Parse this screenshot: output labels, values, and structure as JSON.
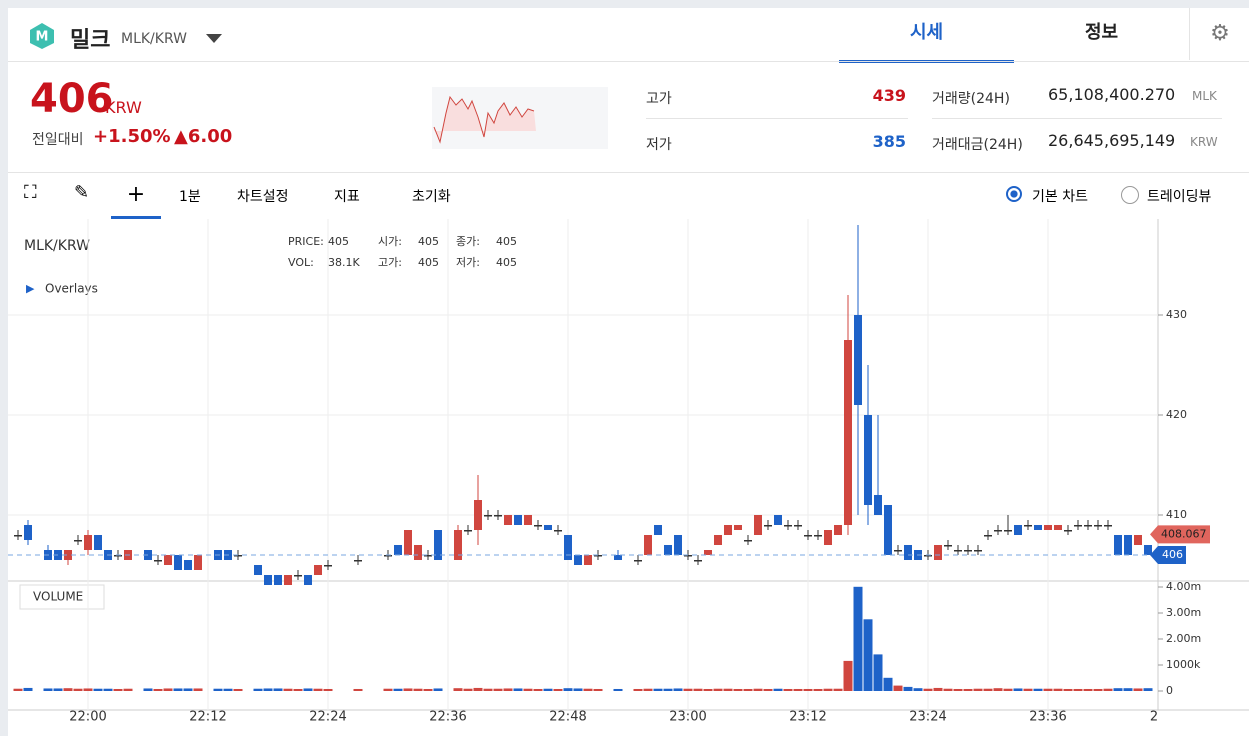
{
  "header": {
    "name": "밀크",
    "pair": "MLK/KRW",
    "tabs": [
      "시세",
      "정보"
    ]
  },
  "ticker": {
    "price": "406",
    "unit": "KRW",
    "change_label": "전일대비",
    "change_pct": "+1.50%",
    "change_abs": "▲6.00"
  },
  "stats": {
    "high_label": "고가",
    "high": "439",
    "low_label": "저가",
    "low": "385",
    "vol_label": "거래량(24H)",
    "vol": "65,108,400.270",
    "vol_unit": "MLK",
    "amt_label": "거래대금(24H)",
    "amt": "26,645,695,149",
    "amt_unit": "KRW"
  },
  "toolbar": {
    "interval": "1분",
    "settings": "차트설정",
    "indicators": "지표",
    "reset": "초기화",
    "basic": "기본 차트",
    "tradingview": "트레이딩뷰"
  },
  "legend": {
    "symbol": "MLK/KRW",
    "overlays": "Overlays",
    "items": [
      [
        "PRICE:",
        "405"
      ],
      [
        "시가:",
        "405"
      ],
      [
        "종가:",
        "405"
      ],
      [
        "VOL:",
        "38.1K"
      ],
      [
        "고가:",
        "405"
      ],
      [
        "저가:",
        "405"
      ]
    ],
    "volume_title": "VOLUME"
  },
  "chart_data": {
    "type": "candlestick",
    "x": [
      "21:53",
      "21:54",
      "21:56",
      "21:57",
      "21:58",
      "21:59",
      "22:00",
      "22:01",
      "22:02",
      "22:03",
      "22:04",
      "22:06",
      "22:07",
      "22:08",
      "22:09",
      "22:10",
      "22:11",
      "22:13",
      "22:14",
      "22:15",
      "22:17",
      "22:18",
      "22:19",
      "22:20",
      "22:21",
      "22:22",
      "22:23",
      "22:24",
      "22:27",
      "22:30",
      "22:31",
      "22:32",
      "22:33",
      "22:34",
      "22:35",
      "22:37",
      "22:38",
      "22:39",
      "22:40",
      "22:41",
      "22:42",
      "22:43",
      "22:44",
      "22:45",
      "22:46",
      "22:47",
      "22:48",
      "22:49",
      "22:50",
      "22:51",
      "22:53",
      "22:55",
      "22:56",
      "22:57",
      "22:58",
      "22:59",
      "23:00",
      "23:01",
      "23:02",
      "23:03",
      "23:04",
      "23:05",
      "23:06",
      "23:07",
      "23:08",
      "23:09",
      "23:10",
      "23:11",
      "23:12",
      "23:13",
      "23:14",
      "23:15",
      "23:16",
      "23:17",
      "23:18",
      "23:19",
      "23:20",
      "23:21",
      "23:22",
      "23:23",
      "23:24",
      "23:25",
      "23:26",
      "23:27",
      "23:28",
      "23:29",
      "23:30",
      "23:31",
      "23:32",
      "23:33",
      "23:34",
      "23:35",
      "23:36",
      "23:37",
      "23:38",
      "23:39",
      "23:40",
      "23:41",
      "23:42",
      "23:43",
      "23:44",
      "23:45",
      "23:46"
    ],
    "open": [
      408,
      409,
      406.5,
      406.5,
      405.5,
      407.5,
      406.5,
      408,
      406.5,
      406,
      405.5,
      406.5,
      405.5,
      405,
      406,
      405.5,
      404.5,
      406.5,
      406.5,
      406,
      405,
      404,
      404,
      403,
      404,
      404,
      404,
      405,
      405.5,
      406,
      407,
      406,
      405.5,
      406,
      408.5,
      405.5,
      408.5,
      408.5,
      410,
      410,
      409,
      410,
      409,
      409,
      409,
      408.5,
      408,
      406,
      405,
      406,
      406,
      405.5,
      406,
      409,
      407,
      408,
      406,
      405.5,
      406,
      407,
      408,
      408.5,
      407.5,
      408,
      409,
      410,
      409,
      409,
      408,
      408,
      407,
      408,
      409,
      430,
      420,
      412,
      411,
      406.5,
      407,
      406.5,
      406,
      405.5,
      407,
      406.5,
      406.5,
      406.5,
      408,
      408.5,
      408.5,
      409,
      409,
      409,
      408.5,
      408.5,
      408.5,
      409,
      409,
      409,
      409,
      408,
      408,
      407,
      407
    ],
    "high": [
      408.5,
      409.5,
      407,
      406.5,
      406.5,
      408,
      408.5,
      408,
      406.5,
      406.5,
      406.5,
      406.5,
      406,
      406,
      406,
      405.5,
      406,
      406.5,
      406.5,
      406.5,
      405,
      404,
      404,
      404,
      404.5,
      404,
      405,
      405.5,
      406,
      406.5,
      407,
      408.5,
      407,
      406.5,
      408.5,
      409,
      409,
      414,
      410.5,
      410.5,
      410,
      410,
      410,
      409.5,
      409,
      409,
      408,
      406,
      406,
      406.5,
      406.5,
      406,
      408,
      409,
      407,
      408,
      406.5,
      406,
      406.5,
      408,
      409,
      409,
      408,
      410,
      409.5,
      410,
      409.5,
      409.5,
      408.5,
      408.5,
      408.5,
      409,
      432,
      439,
      425,
      420,
      411,
      407,
      407,
      406.5,
      406.5,
      407,
      407.5,
      407,
      407,
      407,
      408.5,
      409,
      410,
      409,
      409.5,
      409,
      409,
      409,
      409,
      409.5,
      409.5,
      409.5,
      409.5,
      408,
      408,
      408,
      407
    ],
    "low": [
      407.5,
      407,
      405.5,
      405.5,
      405,
      407,
      406,
      406.5,
      405.5,
      405.5,
      405.5,
      405.5,
      405,
      405,
      404.5,
      404.5,
      404.5,
      405.5,
      405.5,
      405.5,
      404,
      403,
      403,
      403,
      403.5,
      403,
      404,
      404.5,
      405,
      405.5,
      406,
      406,
      405.5,
      405.5,
      405.5,
      405.5,
      408,
      407,
      409.5,
      409.5,
      409,
      409,
      409,
      408.5,
      408.5,
      408,
      405.5,
      405,
      405,
      405.5,
      405.5,
      405,
      406,
      408,
      406,
      406,
      405.5,
      405,
      406,
      407,
      408,
      408.5,
      407,
      408,
      408.5,
      409,
      408.5,
      408.5,
      407.5,
      407.5,
      407,
      408,
      408,
      410,
      409,
      410,
      406,
      406,
      405.5,
      405.5,
      405.5,
      405.5,
      406.5,
      406,
      406,
      406,
      407.5,
      408,
      408,
      408,
      408.5,
      408.5,
      408.5,
      408.5,
      408,
      408.5,
      408.5,
      408.5,
      408.5,
      406,
      406,
      407,
      406
    ],
    "close": [
      408,
      407.5,
      405.5,
      405.5,
      406.5,
      407.5,
      408,
      406.5,
      405.5,
      406,
      406.5,
      405.5,
      405.5,
      406,
      404.5,
      404.5,
      406,
      405.5,
      405.5,
      406,
      404,
      403,
      403,
      404,
      404,
      403,
      405,
      405,
      405.5,
      406,
      406,
      408.5,
      407,
      406,
      405.5,
      408.5,
      408.5,
      411.5,
      410,
      410,
      410,
      409,
      410,
      409,
      408.5,
      408.5,
      405.5,
      405,
      406,
      406,
      405.5,
      405.5,
      408,
      408,
      406,
      406,
      406,
      405.5,
      406.5,
      408,
      409,
      409,
      407.5,
      410,
      409,
      409,
      409,
      409,
      408,
      408,
      408.5,
      409,
      427.5,
      421,
      411,
      410,
      406,
      406.5,
      405.5,
      405.5,
      406,
      407,
      407,
      406.5,
      406.5,
      406.5,
      408,
      408.5,
      408.5,
      408,
      409,
      408.5,
      409,
      409,
      408.5,
      409,
      409,
      409,
      409,
      406,
      406,
      408,
      406
    ],
    "volume": [
      30000,
      60000,
      40000,
      40000,
      50000,
      30000,
      40000,
      30000,
      30000,
      20000,
      30000,
      40000,
      20000,
      40000,
      40000,
      40000,
      40000,
      30000,
      30000,
      20000,
      30000,
      40000,
      40000,
      30000,
      20000,
      40000,
      30000,
      20000,
      20000,
      30000,
      30000,
      40000,
      30000,
      20000,
      40000,
      50000,
      30000,
      60000,
      30000,
      30000,
      40000,
      40000,
      30000,
      20000,
      30000,
      20000,
      50000,
      40000,
      30000,
      20000,
      20000,
      20000,
      30000,
      30000,
      30000,
      40000,
      30000,
      30000,
      20000,
      30000,
      30000,
      20000,
      20000,
      30000,
      20000,
      30000,
      20000,
      20000,
      20000,
      20000,
      30000,
      30000,
      1100000,
      3950000,
      2700000,
      1350000,
      450000,
      150000,
      100000,
      50000,
      30000,
      60000,
      30000,
      20000,
      20000,
      30000,
      30000,
      50000,
      30000,
      40000,
      30000,
      30000,
      30000,
      30000,
      20000,
      20000,
      20000,
      20000,
      30000,
      50000,
      50000,
      40000,
      50000
    ],
    "up_color": "#d0463f",
    "down_color": "#1e62c8",
    "ylim": [
      403.4,
      439.6
    ],
    "yticks": [
      410,
      420,
      430
    ],
    "vol_ylim": [
      0,
      4000000
    ],
    "vol_yticks": [
      0,
      {
        "value": 1000000,
        "label": "1000k"
      },
      {
        "value": 2000000,
        "label": "2.00m"
      },
      {
        "value": 3000000,
        "label": "3.00m"
      },
      {
        "value": 4000000,
        "label": "4.00m"
      }
    ],
    "xticks": [
      "22:00",
      "22:12",
      "22:24",
      "22:36",
      "22:48",
      "23:00",
      "23:12",
      "23:24",
      "23:36"
    ],
    "x_tail": "2",
    "ma_tag": 408.067,
    "last_tag": 406,
    "grid": true
  }
}
